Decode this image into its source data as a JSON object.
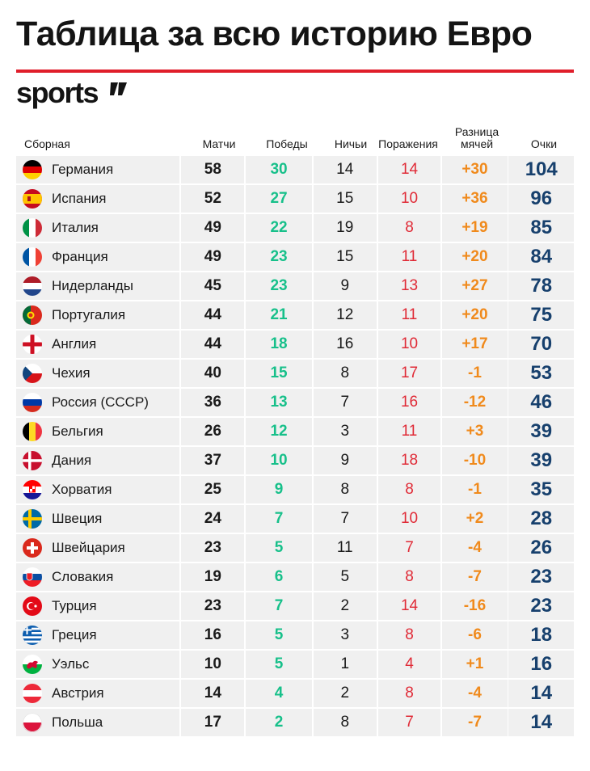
{
  "title": "Таблица за всю историю Евро",
  "brand": "sports",
  "headers": {
    "team": "Сборная",
    "matches": "Матчи",
    "wins": "Победы",
    "draws": "Ничьи",
    "losses": "Поражения",
    "goal_diff_line1": "Разница",
    "goal_diff_line2": "мячей",
    "points": "Очки"
  },
  "colors": {
    "accent_red": "#e01e2b",
    "wins_green": "#17c08a",
    "losses_red": "#e02a36",
    "goal_diff_orange": "#f08a1c",
    "points_navy": "#17406d"
  },
  "rows": [
    {
      "team": "Германия",
      "flag": "germany-flag-icon",
      "matches": "58",
      "wins": "30",
      "draws": "14",
      "losses": "14",
      "gd": "+30",
      "points": "104"
    },
    {
      "team": "Испания",
      "flag": "spain-flag-icon",
      "matches": "52",
      "wins": "27",
      "draws": "15",
      "losses": "10",
      "gd": "+36",
      "points": "96"
    },
    {
      "team": "Италия",
      "flag": "italy-flag-icon",
      "matches": "49",
      "wins": "22",
      "draws": "19",
      "losses": "8",
      "gd": "+19",
      "points": "85"
    },
    {
      "team": "Франция",
      "flag": "france-flag-icon",
      "matches": "49",
      "wins": "23",
      "draws": "15",
      "losses": "11",
      "gd": "+20",
      "points": "84"
    },
    {
      "team": "Нидерланды",
      "flag": "netherlands-flag-icon",
      "matches": "45",
      "wins": "23",
      "draws": "9",
      "losses": "13",
      "gd": "+27",
      "points": "78"
    },
    {
      "team": "Португалия",
      "flag": "portugal-flag-icon",
      "matches": "44",
      "wins": "21",
      "draws": "12",
      "losses": "11",
      "gd": "+20",
      "points": "75"
    },
    {
      "team": "Англия",
      "flag": "england-flag-icon",
      "matches": "44",
      "wins": "18",
      "draws": "16",
      "losses": "10",
      "gd": "+17",
      "points": "70"
    },
    {
      "team": "Чехия",
      "flag": "czechia-flag-icon",
      "matches": "40",
      "wins": "15",
      "draws": "8",
      "losses": "17",
      "gd": "-1",
      "points": "53"
    },
    {
      "team": "Россия (СССР)",
      "flag": "russia-flag-icon",
      "matches": "36",
      "wins": "13",
      "draws": "7",
      "losses": "16",
      "gd": "-12",
      "points": "46"
    },
    {
      "team": "Бельгия",
      "flag": "belgium-flag-icon",
      "matches": "26",
      "wins": "12",
      "draws": "3",
      "losses": "11",
      "gd": "+3",
      "points": "39"
    },
    {
      "team": "Дания",
      "flag": "denmark-flag-icon",
      "matches": "37",
      "wins": "10",
      "draws": "9",
      "losses": "18",
      "gd": "-10",
      "points": "39"
    },
    {
      "team": "Хорватия",
      "flag": "croatia-flag-icon",
      "matches": "25",
      "wins": "9",
      "draws": "8",
      "losses": "8",
      "gd": "-1",
      "points": "35"
    },
    {
      "team": "Швеция",
      "flag": "sweden-flag-icon",
      "matches": "24",
      "wins": "7",
      "draws": "7",
      "losses": "10",
      "gd": "+2",
      "points": "28"
    },
    {
      "team": "Швейцария",
      "flag": "switzerland-flag-icon",
      "matches": "23",
      "wins": "5",
      "draws": "11",
      "losses": "7",
      "gd": "-4",
      "points": "26"
    },
    {
      "team": "Словакия",
      "flag": "slovakia-flag-icon",
      "matches": "19",
      "wins": "6",
      "draws": "5",
      "losses": "8",
      "gd": "-7",
      "points": "23"
    },
    {
      "team": "Турция",
      "flag": "turkey-flag-icon",
      "matches": "23",
      "wins": "7",
      "draws": "2",
      "losses": "14",
      "gd": "-16",
      "points": "23"
    },
    {
      "team": "Греция",
      "flag": "greece-flag-icon",
      "matches": "16",
      "wins": "5",
      "draws": "3",
      "losses": "8",
      "gd": "-6",
      "points": "18"
    },
    {
      "team": "Уэльс",
      "flag": "wales-flag-icon",
      "matches": "10",
      "wins": "5",
      "draws": "1",
      "losses": "4",
      "gd": "+1",
      "points": "16"
    },
    {
      "team": "Австрия",
      "flag": "austria-flag-icon",
      "matches": "14",
      "wins": "4",
      "draws": "2",
      "losses": "8",
      "gd": "-4",
      "points": "14"
    },
    {
      "team": "Польша",
      "flag": "poland-flag-icon",
      "matches": "17",
      "wins": "2",
      "draws": "8",
      "losses": "7",
      "gd": "-7",
      "points": "14"
    }
  ]
}
